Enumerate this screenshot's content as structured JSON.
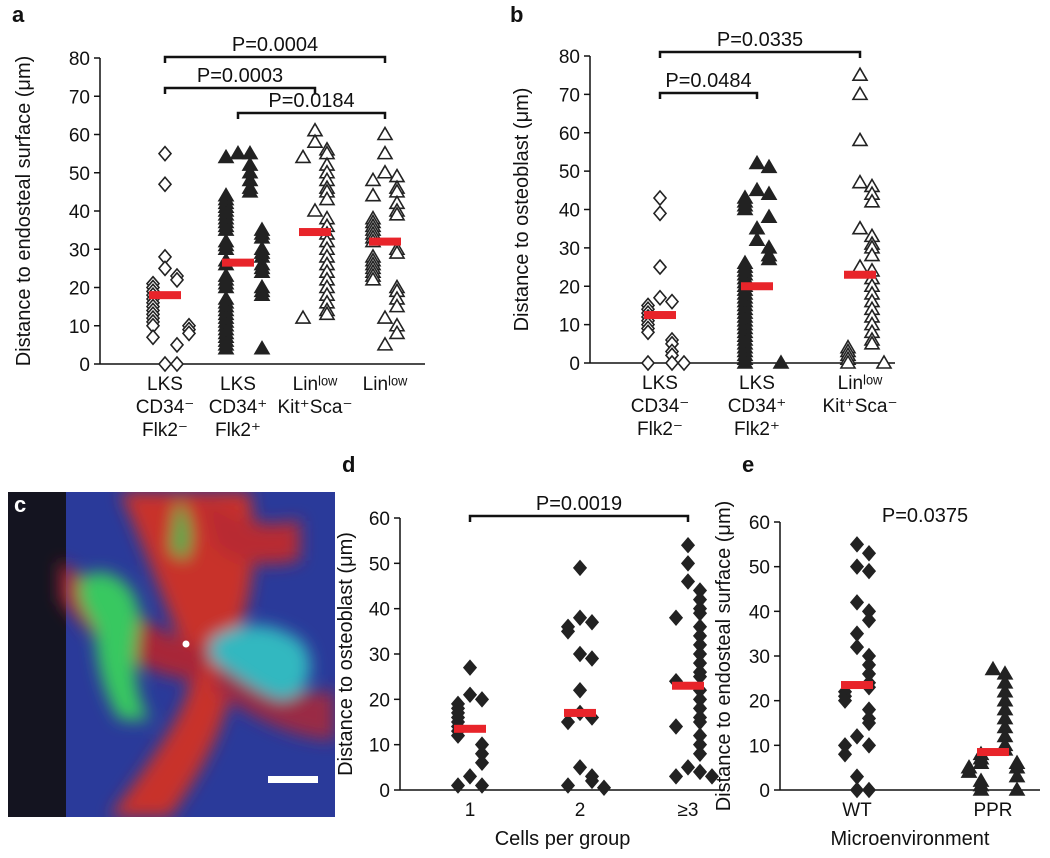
{
  "image_panel": {
    "label": "c"
  },
  "chart_data": [
    {
      "type": "strip",
      "panel": "a",
      "ylabel": "Distance to endosteal surface (μm)",
      "categories": [
        [
          "LKS",
          "CD34⁻",
          "Flk2⁻"
        ],
        [
          "LKS",
          "CD34⁺",
          "Flk2⁺"
        ],
        [
          "Linˡᵒʷ",
          "Kit⁺Sca⁻"
        ],
        [
          "Linˡᵒʷ"
        ]
      ],
      "ylim": [
        0,
        80
      ],
      "yticks": [
        0,
        10,
        20,
        30,
        40,
        50,
        60,
        70,
        80
      ],
      "annotations": [
        {
          "label": "P=0.0004",
          "between": [
            0,
            3
          ]
        },
        {
          "label": "P=0.0003",
          "between": [
            0,
            2
          ]
        },
        {
          "label": "P=0.0184",
          "between": [
            1,
            3
          ]
        }
      ],
      "series": [
        {
          "marker": "diamond",
          "filled": false,
          "color": "#222222",
          "mean_color": "#e8242a",
          "mean": 18,
          "values": [
            55,
            47,
            28,
            25,
            23,
            22,
            21,
            20,
            19,
            18,
            17,
            16,
            15,
            14,
            13,
            12,
            11,
            10,
            10,
            9,
            8,
            7,
            5,
            0,
            0
          ]
        },
        {
          "marker": "triangle",
          "filled": true,
          "color": "#222222",
          "mean_color": "#e8242a",
          "mean": 26.5,
          "values": [
            55,
            55,
            54,
            52,
            50,
            48,
            46,
            45,
            44,
            43,
            42,
            41,
            40,
            39,
            38,
            37,
            36,
            35,
            35,
            34,
            33,
            32,
            31,
            30,
            30,
            29,
            28,
            27,
            26,
            26,
            25,
            24,
            23,
            22,
            21,
            20,
            20,
            19,
            18,
            17,
            16,
            15,
            14,
            13,
            12,
            11,
            10,
            9,
            8,
            7,
            6,
            5,
            4,
            4
          ]
        },
        {
          "marker": "triangle",
          "filled": false,
          "color": "#222222",
          "mean_color": "#e8242a",
          "mean": 34.5,
          "values": [
            61,
            58,
            56,
            55,
            54,
            52,
            50,
            48,
            46,
            45,
            43,
            40,
            38,
            36,
            34,
            32,
            30,
            28,
            26,
            24,
            22,
            20,
            18,
            16,
            14,
            13,
            12
          ]
        },
        {
          "marker": "triangle",
          "filled": false,
          "color": "#222222",
          "mean_color": "#e8242a",
          "mean": 32,
          "values": [
            60,
            55,
            50,
            49,
            48,
            46,
            45,
            44,
            42,
            40,
            39,
            38,
            37,
            36,
            35,
            34,
            33,
            32,
            30,
            29,
            28,
            27,
            26,
            25,
            24,
            23,
            22,
            20,
            19,
            17,
            15,
            12,
            10,
            8,
            5
          ]
        }
      ]
    },
    {
      "type": "strip",
      "panel": "b",
      "ylabel": "Distance to osteoblast (μm)",
      "categories": [
        [
          "LKS",
          "CD34⁻",
          "Flk2⁻"
        ],
        [
          "LKS",
          "CD34⁺",
          "Flk2⁺"
        ],
        [
          "Linˡᵒʷ",
          "Kit⁺Sca⁻"
        ]
      ],
      "ylim": [
        0,
        80
      ],
      "yticks": [
        0,
        10,
        20,
        30,
        40,
        50,
        60,
        70,
        80
      ],
      "annotations": [
        {
          "label": "P=0.0335",
          "between": [
            0,
            2
          ]
        },
        {
          "label": "P=0.0484",
          "between": [
            0,
            1
          ]
        }
      ],
      "series": [
        {
          "marker": "diamond",
          "filled": false,
          "color": "#222222",
          "mean_color": "#e8242a",
          "mean": 12.5,
          "values": [
            43,
            39,
            25,
            17,
            16,
            15,
            14,
            13,
            12,
            11,
            10,
            9,
            8,
            6,
            5,
            3,
            2,
            0,
            0,
            0
          ]
        },
        {
          "marker": "triangle",
          "filled": true,
          "color": "#222222",
          "mean_color": "#e8242a",
          "mean": 20,
          "values": [
            52,
            51,
            45,
            44,
            43,
            42,
            41,
            40,
            38,
            35,
            32,
            30,
            28,
            27,
            26,
            25,
            24,
            23,
            22,
            21,
            20,
            19,
            18,
            17,
            16,
            15,
            14,
            13,
            12,
            11,
            10,
            9,
            8,
            7,
            6,
            5,
            4,
            3,
            2,
            1,
            0,
            0
          ]
        },
        {
          "marker": "triangle",
          "filled": false,
          "color": "#222222",
          "mean_color": "#e8242a",
          "mean": 23,
          "values": [
            75,
            70,
            58,
            47,
            46,
            44,
            42,
            35,
            33,
            31,
            30,
            28,
            25,
            24,
            22,
            20,
            18,
            16,
            14,
            12,
            10,
            8,
            6,
            5,
            4,
            3,
            2,
            1,
            0,
            0
          ]
        }
      ]
    },
    {
      "type": "strip",
      "panel": "d",
      "ylabel": "Distance to osteoblast (μm)",
      "xlabel": "Cells per group",
      "categories": [
        [
          "1"
        ],
        [
          "2"
        ],
        [
          "≥3"
        ]
      ],
      "ylim": [
        0,
        60
      ],
      "yticks": [
        0,
        10,
        20,
        30,
        40,
        50,
        60
      ],
      "annotations": [
        {
          "label": "P=0.0019",
          "between": [
            0,
            2
          ]
        }
      ],
      "series": [
        {
          "marker": "diamond",
          "filled": true,
          "color": "#222222",
          "mean_color": "#e8242a",
          "mean": 13.5,
          "values": [
            27,
            21,
            20,
            19,
            18,
            17,
            16,
            15,
            14,
            13,
            12,
            10,
            8,
            6,
            3,
            1,
            1
          ]
        },
        {
          "marker": "diamond",
          "filled": true,
          "color": "#222222",
          "mean_color": "#e8242a",
          "mean": 17,
          "values": [
            49,
            38,
            37,
            36,
            35,
            30,
            29,
            22,
            17,
            16,
            15,
            5,
            3,
            2,
            1,
            0.5
          ]
        },
        {
          "marker": "diamond",
          "filled": true,
          "color": "#222222",
          "mean_color": "#e8242a",
          "mean": 23,
          "values": [
            54,
            50,
            46,
            44,
            42,
            40,
            39,
            38,
            36,
            34,
            32,
            30,
            28,
            26,
            25,
            24,
            22,
            20,
            18,
            16,
            15,
            14,
            12,
            10,
            8,
            5,
            4,
            3,
            3
          ]
        }
      ]
    },
    {
      "type": "strip",
      "panel": "e",
      "ylabel": "Distance to endosteal surface (μm)",
      "xlabel": "Microenvironment",
      "categories": [
        [
          "WT"
        ],
        [
          "PPR"
        ]
      ],
      "ylim": [
        0,
        60
      ],
      "yticks": [
        0,
        10,
        20,
        30,
        40,
        50,
        60
      ],
      "annotations": [
        {
          "label": "P=0.0375"
        }
      ],
      "series": [
        {
          "marker": "diamond",
          "filled": true,
          "color": "#222222",
          "mean_color": "#e8242a",
          "mean": 23.5,
          "values": [
            55,
            53,
            50,
            49,
            42,
            40,
            38,
            35,
            32,
            30,
            28,
            26,
            24,
            23,
            22,
            21,
            20,
            18,
            16,
            15,
            12,
            10,
            10,
            8,
            3,
            0,
            0
          ]
        },
        {
          "marker": "triangle",
          "filled": true,
          "color": "#222222",
          "mean_color": "#e8242a",
          "mean": 8.5,
          "values": [
            27,
            26,
            24,
            22,
            20,
            18,
            16,
            14,
            12,
            10,
            9,
            8,
            7,
            6,
            6,
            5,
            5,
            4,
            3,
            2,
            1,
            0,
            0
          ]
        }
      ]
    }
  ]
}
